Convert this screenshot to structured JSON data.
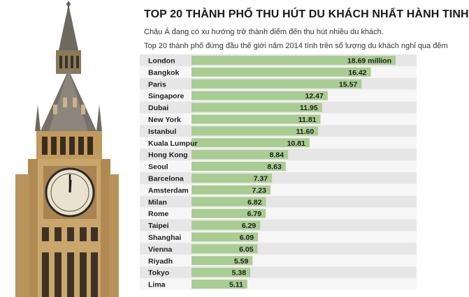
{
  "header": {
    "title": "TOP 20 THÀNH PHỐ THU HÚT DU KHÁCH NHẤT HÀNH TINH",
    "subtitle1": "Châu Á đang có xu hướng trở thành điểm đến thu hút nhiều du khách.",
    "subtitle2": "Top 20 thành phố đứng đầu thế giới năm 2014  tính trên số lượng du khách nghỉ qua đêm"
  },
  "colors": {
    "bar": "#a9cc92",
    "row_even": "#e6e6e6",
    "row_odd": "#f6f6f6",
    "tower_stone": "#c9a66b",
    "tower_roof": "#6f6a60"
  },
  "illustration": {
    "icon": "clock-tower-icon"
  },
  "chart_data": {
    "type": "bar",
    "orientation": "horizontal",
    "title": "TOP 20 THÀNH PHỐ THU HÚT DU KHÁCH NHẤT HÀNH TINH",
    "categories": [
      "London",
      "Bangkok",
      "Paris",
      "Singapore",
      "Dubai",
      "New York",
      "Istanbul",
      "Kuala Lumpur",
      "Hong Kong",
      "Seoul",
      "Barcelona",
      "Amsterdam",
      "Milan",
      "Rome",
      "Taipei",
      "Shanghai",
      "Vienna",
      "Riyadh",
      "Tokyo",
      "Lima"
    ],
    "values": [
      18.69,
      16.42,
      15.57,
      12.47,
      11.95,
      11.81,
      11.6,
      10.81,
      8.84,
      8.63,
      7.37,
      7.23,
      6.82,
      6.79,
      6.29,
      6.09,
      6.05,
      5.59,
      5.38,
      5.11
    ],
    "value_labels": [
      "18.69 million",
      "16.42",
      "15.57",
      "12.47",
      "11.95",
      "11.81",
      "11.60",
      "10.81",
      "8.84",
      "8.63",
      "7.37",
      "7.23",
      "6.82",
      "6.79",
      "6.29",
      "6.09",
      "6.05",
      "5.59",
      "5.38",
      "5.11"
    ],
    "xlim": [
      0,
      18.69
    ],
    "grid": false,
    "legend": "none"
  }
}
